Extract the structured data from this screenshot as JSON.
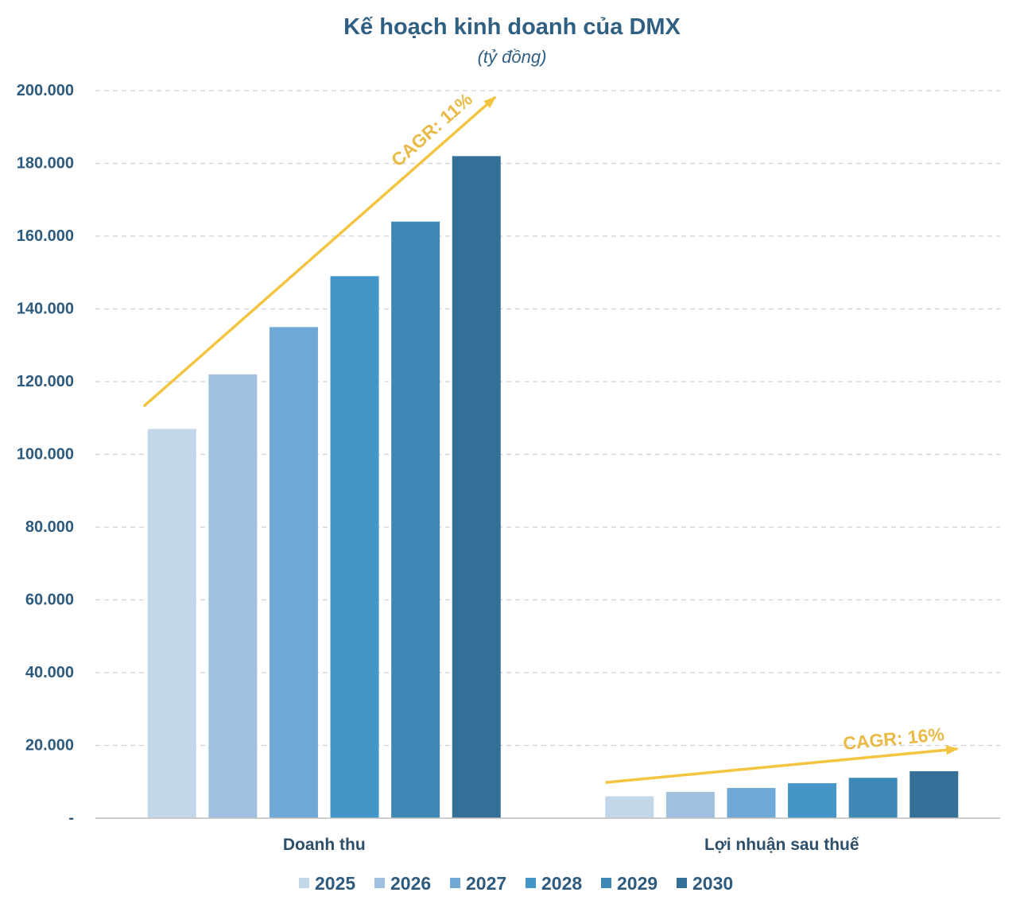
{
  "chart_data": {
    "type": "bar",
    "title": "Kế hoạch kinh doanh của DMX",
    "subtitle": "(tỷ đồng)",
    "categories": [
      "Doanh thu",
      "Lợi nhuận sau thuế"
    ],
    "series": [
      {
        "name": "2025",
        "values": [
          107000,
          6000
        ],
        "color": "#c3d6ea"
      },
      {
        "name": "2026",
        "values": [
          122000,
          7200
        ],
        "color": "#9fc0df"
      },
      {
        "name": "2027",
        "values": [
          135000,
          8300
        ],
        "color": "#71a9d6"
      },
      {
        "name": "2028",
        "values": [
          149000,
          9600
        ],
        "color": "#4496c8"
      },
      {
        "name": "2029",
        "values": [
          164000,
          11100
        ],
        "color": "#3d88b5"
      },
      {
        "name": "2030",
        "values": [
          182000,
          12900
        ],
        "color": "#336f96"
      }
    ],
    "ylim": [
      0,
      200000
    ],
    "yticks": [
      {
        "value": 0,
        "label": "-"
      },
      {
        "value": 20000,
        "label": "20.000"
      },
      {
        "value": 40000,
        "label": "40.000"
      },
      {
        "value": 60000,
        "label": "60.000"
      },
      {
        "value": 80000,
        "label": "80.000"
      },
      {
        "value": 100000,
        "label": "100.000"
      },
      {
        "value": 120000,
        "label": "120.000"
      },
      {
        "value": 140000,
        "label": "140.000"
      },
      {
        "value": 160000,
        "label": "160.000"
      },
      {
        "value": 180000,
        "label": "180.000"
      },
      {
        "value": 200000,
        "label": "200.000"
      }
    ],
    "grid": true,
    "legend_position": "bottom",
    "annotations": [
      {
        "text": "CAGR: 11%"
      },
      {
        "text": "CAGR: 16%"
      }
    ],
    "colors": {
      "title": "#2f5f82",
      "text": "#2e5b7d",
      "category_text": "#2e4f6a",
      "grid": "#d0d0d0",
      "axis": "#bfbfbf",
      "arrow": "#f2c440",
      "annotation": "#e9b945"
    }
  }
}
